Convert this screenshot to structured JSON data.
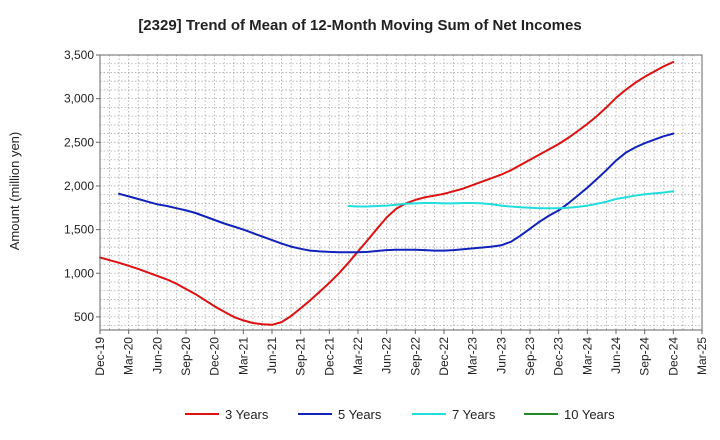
{
  "chart_data": {
    "type": "line",
    "title": "[2329]  Trend of Mean of 12-Month Moving Sum of Net Incomes",
    "xlabel": "",
    "ylabel": "Amount (million yen)",
    "ylim": [
      350,
      3500
    ],
    "yticks": [
      500,
      1000,
      1500,
      2000,
      2500,
      3000,
      3500
    ],
    "ytick_labels": [
      "500",
      "1,000",
      "1,500",
      "2,000",
      "2,500",
      "3,000",
      "3,500"
    ],
    "xlim": [
      "2019-12",
      "2025-03"
    ],
    "xtick_labels": [
      "Dec-19",
      "Mar-20",
      "Jun-20",
      "Sep-20",
      "Dec-20",
      "Mar-21",
      "Jun-21",
      "Sep-21",
      "Dec-21",
      "Mar-22",
      "Jun-22",
      "Sep-22",
      "Dec-22",
      "Mar-23",
      "Jun-23",
      "Sep-23",
      "Dec-23",
      "Mar-24",
      "Jun-24",
      "Sep-24",
      "Dec-24",
      "Mar-25"
    ],
    "grid": true,
    "legend_position": "bottom",
    "series": [
      {
        "name": "3 Years",
        "color": "#dd1111",
        "points": [
          [
            "2019-12",
            1180
          ],
          [
            "2020-01",
            1150
          ],
          [
            "2020-02",
            1120
          ],
          [
            "2020-03",
            1085
          ],
          [
            "2020-04",
            1050
          ],
          [
            "2020-05",
            1010
          ],
          [
            "2020-06",
            970
          ],
          [
            "2020-07",
            930
          ],
          [
            "2020-08",
            880
          ],
          [
            "2020-09",
            820
          ],
          [
            "2020-10",
            760
          ],
          [
            "2020-11",
            690
          ],
          [
            "2020-12",
            620
          ],
          [
            "2021-01",
            560
          ],
          [
            "2021-02",
            500
          ],
          [
            "2021-03",
            460
          ],
          [
            "2021-04",
            430
          ],
          [
            "2021-05",
            415
          ],
          [
            "2021-06",
            410
          ],
          [
            "2021-07",
            440
          ],
          [
            "2021-08",
            510
          ],
          [
            "2021-09",
            600
          ],
          [
            "2021-10",
            690
          ],
          [
            "2021-11",
            790
          ],
          [
            "2021-12",
            890
          ],
          [
            "2022-01",
            1000
          ],
          [
            "2022-02",
            1120
          ],
          [
            "2022-03",
            1250
          ],
          [
            "2022-04",
            1380
          ],
          [
            "2022-05",
            1510
          ],
          [
            "2022-06",
            1640
          ],
          [
            "2022-07",
            1740
          ],
          [
            "2022-08",
            1800
          ],
          [
            "2022-09",
            1840
          ],
          [
            "2022-10",
            1870
          ],
          [
            "2022-11",
            1890
          ],
          [
            "2022-12",
            1910
          ],
          [
            "2023-01",
            1940
          ],
          [
            "2023-02",
            1970
          ],
          [
            "2023-03",
            2010
          ],
          [
            "2023-04",
            2050
          ],
          [
            "2023-05",
            2090
          ],
          [
            "2023-06",
            2130
          ],
          [
            "2023-07",
            2180
          ],
          [
            "2023-08",
            2240
          ],
          [
            "2023-09",
            2300
          ],
          [
            "2023-10",
            2360
          ],
          [
            "2023-11",
            2420
          ],
          [
            "2023-12",
            2480
          ],
          [
            "2024-01",
            2550
          ],
          [
            "2024-02",
            2630
          ],
          [
            "2024-03",
            2710
          ],
          [
            "2024-04",
            2800
          ],
          [
            "2024-05",
            2900
          ],
          [
            "2024-06",
            3010
          ],
          [
            "2024-07",
            3100
          ],
          [
            "2024-08",
            3180
          ],
          [
            "2024-09",
            3250
          ],
          [
            "2024-10",
            3310
          ],
          [
            "2024-11",
            3370
          ],
          [
            "2024-12",
            3420
          ]
        ]
      },
      {
        "name": "5 Years",
        "color": "#1122bb",
        "points": [
          [
            "2020-02",
            1910
          ],
          [
            "2020-03",
            1880
          ],
          [
            "2020-04",
            1850
          ],
          [
            "2020-05",
            1820
          ],
          [
            "2020-06",
            1790
          ],
          [
            "2020-07",
            1770
          ],
          [
            "2020-08",
            1745
          ],
          [
            "2020-09",
            1720
          ],
          [
            "2020-10",
            1690
          ],
          [
            "2020-11",
            1650
          ],
          [
            "2020-12",
            1610
          ],
          [
            "2021-01",
            1570
          ],
          [
            "2021-02",
            1535
          ],
          [
            "2021-03",
            1500
          ],
          [
            "2021-04",
            1460
          ],
          [
            "2021-05",
            1420
          ],
          [
            "2021-06",
            1380
          ],
          [
            "2021-07",
            1340
          ],
          [
            "2021-08",
            1305
          ],
          [
            "2021-09",
            1280
          ],
          [
            "2021-10",
            1260
          ],
          [
            "2021-11",
            1250
          ],
          [
            "2021-12",
            1245
          ],
          [
            "2022-01",
            1240
          ],
          [
            "2022-02",
            1240
          ],
          [
            "2022-03",
            1240
          ],
          [
            "2022-04",
            1245
          ],
          [
            "2022-05",
            1255
          ],
          [
            "2022-06",
            1265
          ],
          [
            "2022-07",
            1270
          ],
          [
            "2022-08",
            1270
          ],
          [
            "2022-09",
            1270
          ],
          [
            "2022-10",
            1265
          ],
          [
            "2022-11",
            1260
          ],
          [
            "2022-12",
            1260
          ],
          [
            "2023-01",
            1265
          ],
          [
            "2023-02",
            1275
          ],
          [
            "2023-03",
            1285
          ],
          [
            "2023-04",
            1295
          ],
          [
            "2023-05",
            1305
          ],
          [
            "2023-06",
            1320
          ],
          [
            "2023-07",
            1360
          ],
          [
            "2023-08",
            1430
          ],
          [
            "2023-09",
            1510
          ],
          [
            "2023-10",
            1590
          ],
          [
            "2023-11",
            1660
          ],
          [
            "2023-12",
            1720
          ],
          [
            "2024-01",
            1800
          ],
          [
            "2024-02",
            1890
          ],
          [
            "2024-03",
            1980
          ],
          [
            "2024-04",
            2080
          ],
          [
            "2024-05",
            2180
          ],
          [
            "2024-06",
            2290
          ],
          [
            "2024-07",
            2380
          ],
          [
            "2024-08",
            2440
          ],
          [
            "2024-09",
            2490
          ],
          [
            "2024-10",
            2530
          ],
          [
            "2024-11",
            2570
          ],
          [
            "2024-12",
            2600
          ]
        ]
      },
      {
        "name": "7 Years",
        "color": "#22dddd",
        "points": [
          [
            "2022-02",
            1770
          ],
          [
            "2022-03",
            1765
          ],
          [
            "2022-04",
            1765
          ],
          [
            "2022-05",
            1770
          ],
          [
            "2022-06",
            1775
          ],
          [
            "2022-07",
            1785
          ],
          [
            "2022-08",
            1795
          ],
          [
            "2022-09",
            1800
          ],
          [
            "2022-10",
            1805
          ],
          [
            "2022-11",
            1805
          ],
          [
            "2022-12",
            1800
          ],
          [
            "2023-01",
            1800
          ],
          [
            "2023-02",
            1805
          ],
          [
            "2023-03",
            1805
          ],
          [
            "2023-04",
            1800
          ],
          [
            "2023-05",
            1790
          ],
          [
            "2023-06",
            1775
          ],
          [
            "2023-07",
            1765
          ],
          [
            "2023-08",
            1755
          ],
          [
            "2023-09",
            1750
          ],
          [
            "2023-10",
            1745
          ],
          [
            "2023-11",
            1745
          ],
          [
            "2023-12",
            1745
          ],
          [
            "2024-01",
            1750
          ],
          [
            "2024-02",
            1760
          ],
          [
            "2024-03",
            1775
          ],
          [
            "2024-04",
            1795
          ],
          [
            "2024-05",
            1820
          ],
          [
            "2024-06",
            1850
          ],
          [
            "2024-07",
            1870
          ],
          [
            "2024-08",
            1890
          ],
          [
            "2024-09",
            1905
          ],
          [
            "2024-10",
            1915
          ],
          [
            "2024-11",
            1925
          ],
          [
            "2024-12",
            1940
          ]
        ]
      },
      {
        "name": "10 Years",
        "color": "#228822",
        "points": []
      }
    ]
  }
}
